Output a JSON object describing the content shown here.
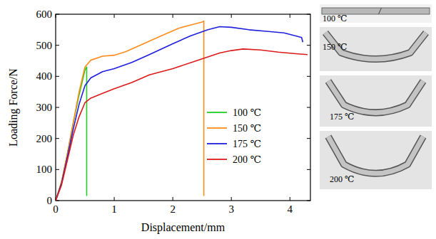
{
  "chart_data": {
    "type": "line",
    "x_label": "Displacement/mm",
    "y_label": "Loading Force/N",
    "xlim": [
      0,
      4.35
    ],
    "xticks": [
      0,
      1,
      2,
      3,
      4
    ],
    "ylim": [
      0,
      600
    ],
    "yticks": [
      0,
      100,
      200,
      300,
      400,
      500,
      600
    ],
    "legend": "right",
    "annotations": [
      "100 ℃",
      "150 ℃",
      "175 ℃",
      "200 ℃"
    ],
    "series": [
      {
        "name": "100 ℃",
        "color": "#22cc22",
        "x": [
          0,
          0.1,
          0.2,
          0.3,
          0.4,
          0.5,
          0.53,
          0.53
        ],
        "values": [
          0,
          60,
          150,
          250,
          340,
          420,
          430,
          15
        ]
      },
      {
        "name": "150 ℃",
        "color": "#ff8c1a",
        "x": [
          0,
          0.1,
          0.2,
          0.3,
          0.4,
          0.5,
          0.6,
          0.8,
          1.0,
          1.2,
          1.5,
          1.8,
          2.1,
          2.3,
          2.5,
          2.53,
          2.53
        ],
        "values": [
          0,
          60,
          150,
          250,
          350,
          430,
          452,
          465,
          468,
          480,
          505,
          530,
          555,
          565,
          575,
          578,
          15
        ]
      },
      {
        "name": "175 ℃",
        "color": "#1f1fdd",
        "x": [
          0,
          0.1,
          0.2,
          0.3,
          0.4,
          0.5,
          0.6,
          0.8,
          1.0,
          1.3,
          1.6,
          2.0,
          2.3,
          2.6,
          2.8,
          3.0,
          3.3,
          3.6,
          3.9,
          4.1,
          4.2,
          4.22
        ],
        "values": [
          0,
          55,
          140,
          230,
          310,
          370,
          395,
          415,
          425,
          445,
          470,
          505,
          530,
          550,
          560,
          558,
          550,
          545,
          540,
          530,
          525,
          510
        ]
      },
      {
        "name": "200 ℃",
        "color": "#dd1a1a",
        "x": [
          0,
          0.1,
          0.2,
          0.3,
          0.4,
          0.5,
          0.6,
          0.8,
          1.0,
          1.3,
          1.6,
          2.0,
          2.4,
          2.8,
          3.0,
          3.2,
          3.5,
          3.8,
          4.1,
          4.3
        ],
        "values": [
          0,
          50,
          130,
          210,
          270,
          315,
          330,
          345,
          360,
          380,
          405,
          425,
          450,
          475,
          483,
          488,
          485,
          478,
          473,
          470
        ]
      }
    ]
  }
}
